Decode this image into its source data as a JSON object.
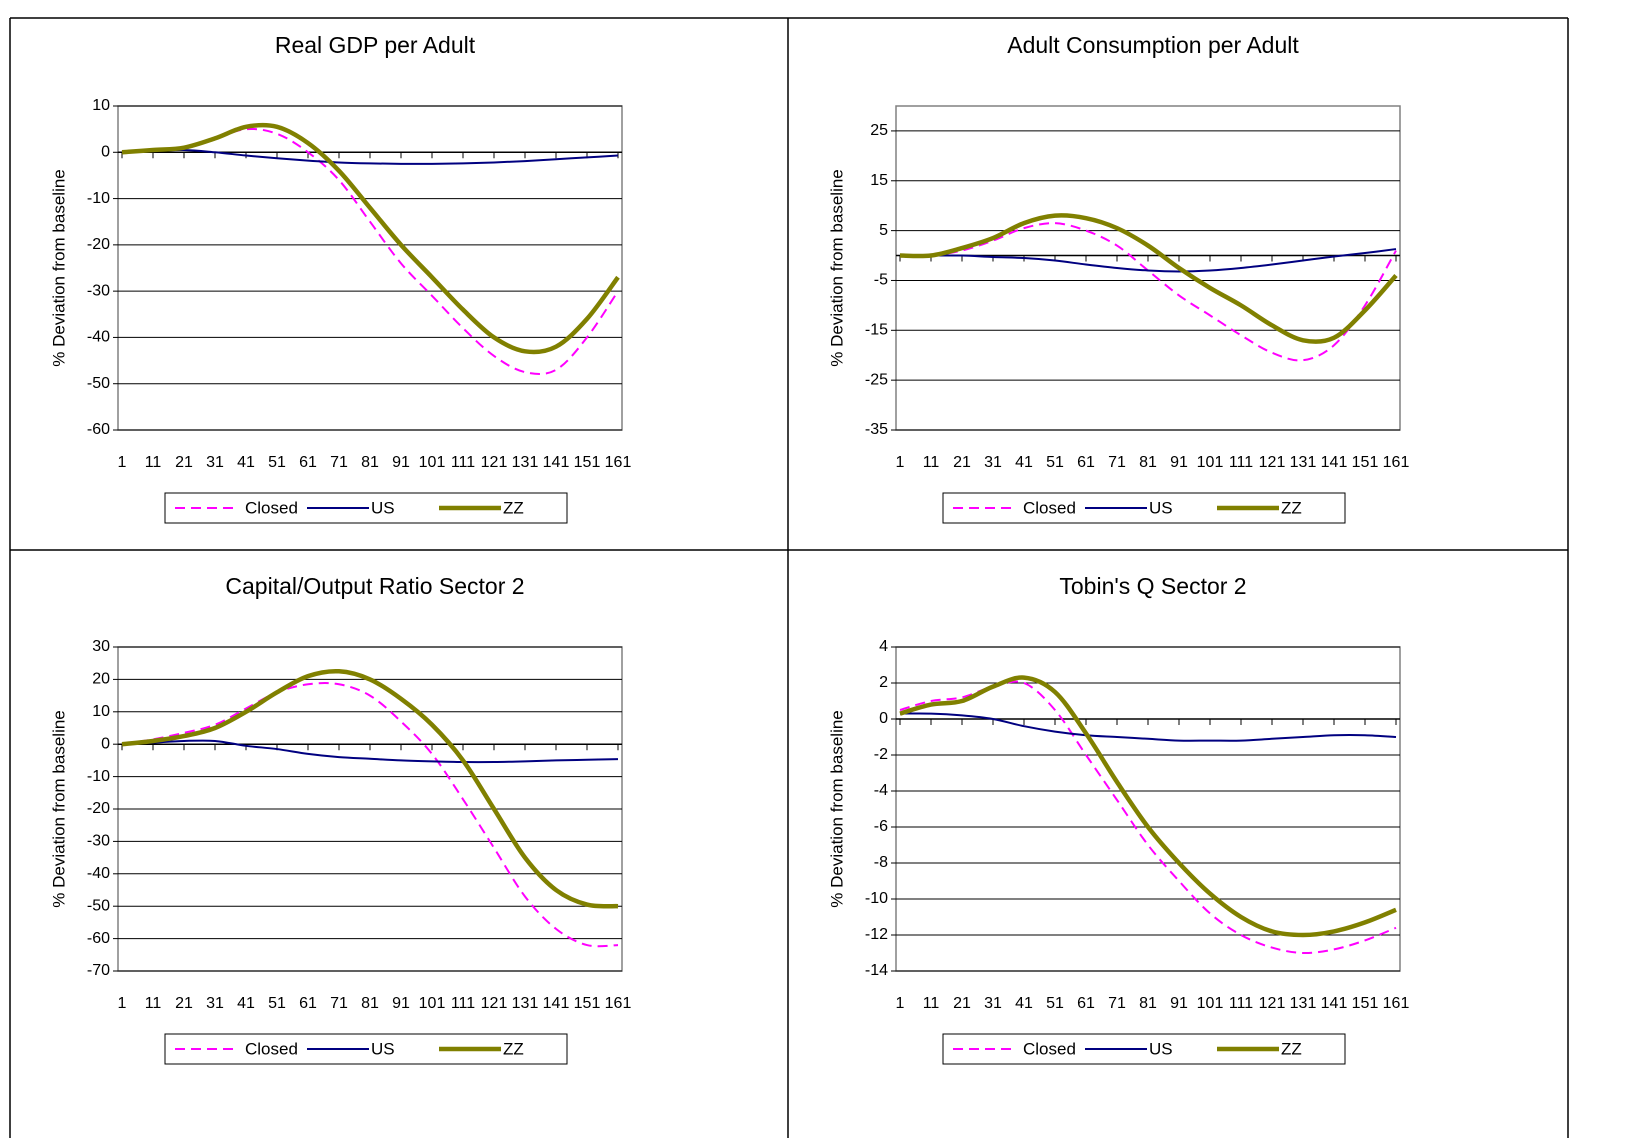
{
  "chart_data": [
    {
      "type": "line",
      "title": "Real GDP per Adult",
      "y_label": "%  Deviation from baseline",
      "x": [
        1,
        11,
        21,
        31,
        41,
        51,
        61,
        71,
        81,
        91,
        101,
        111,
        121,
        131,
        141,
        151,
        161
      ],
      "xlim": [
        1,
        161
      ],
      "xticks": [
        1,
        11,
        21,
        31,
        41,
        51,
        61,
        71,
        81,
        91,
        101,
        111,
        121,
        131,
        141,
        151,
        161
      ],
      "ylim": [
        -60,
        10
      ],
      "yticks": [
        -60,
        -50,
        -40,
        -30,
        -20,
        -10,
        0,
        10
      ],
      "grid": true,
      "legend": "bottom",
      "series": [
        {
          "name": "Closed",
          "color": "#ff00ff",
          "values": [
            0,
            0.5,
            1,
            3,
            5,
            4,
            0,
            -6,
            -15,
            -24,
            -31,
            -38,
            -44,
            -47.5,
            -47,
            -40,
            -30
          ]
        },
        {
          "name": "US",
          "color": "#000080",
          "values": [
            0,
            0.3,
            0.5,
            0,
            -0.7,
            -1.3,
            -1.8,
            -2.2,
            -2.4,
            -2.5,
            -2.5,
            -2.4,
            -2.2,
            -1.9,
            -1.5,
            -1.1,
            -0.7
          ]
        },
        {
          "name": "ZZ",
          "color": "#808000",
          "values": [
            0,
            0.5,
            1,
            3,
            5.5,
            5.5,
            2,
            -4,
            -12,
            -20,
            -27,
            -34,
            -40,
            -43,
            -42,
            -36,
            -27
          ]
        }
      ]
    },
    {
      "type": "line",
      "title": "Adult Consumption per Adult",
      "y_label": "%  Deviation from baseline",
      "x": [
        1,
        11,
        21,
        31,
        41,
        51,
        61,
        71,
        81,
        91,
        101,
        111,
        121,
        131,
        141,
        151,
        161
      ],
      "xlim": [
        1,
        161
      ],
      "xticks": [
        1,
        11,
        21,
        31,
        41,
        51,
        61,
        71,
        81,
        91,
        101,
        111,
        121,
        131,
        141,
        151,
        161
      ],
      "ylim": [
        -35,
        30
      ],
      "yticks": [
        -35,
        -25,
        -15,
        -5,
        5,
        15,
        25
      ],
      "grid": true,
      "legend": "bottom",
      "series": [
        {
          "name": "Closed",
          "color": "#ff00ff",
          "values": [
            0,
            0,
            1,
            3,
            5.5,
            6.5,
            5,
            2,
            -3,
            -8,
            -12,
            -16,
            -19.5,
            -21,
            -18,
            -10,
            1
          ]
        },
        {
          "name": "US",
          "color": "#000080",
          "values": [
            0,
            0,
            0,
            -0.3,
            -0.5,
            -1,
            -1.8,
            -2.5,
            -3,
            -3.2,
            -3,
            -2.5,
            -1.8,
            -1,
            -0.2,
            0.5,
            1.3
          ]
        },
        {
          "name": "ZZ",
          "color": "#808000",
          "values": [
            0,
            0,
            1.5,
            3.5,
            6.5,
            8,
            7.5,
            5.5,
            2,
            -2.5,
            -6.5,
            -10,
            -14,
            -17,
            -16.5,
            -11,
            -4
          ]
        }
      ]
    },
    {
      "type": "line",
      "title": "Capital/Output Ratio Sector 2",
      "y_label": "%  Deviation from baseline",
      "x": [
        1,
        11,
        21,
        31,
        41,
        51,
        61,
        71,
        81,
        91,
        101,
        111,
        121,
        131,
        141,
        151,
        161
      ],
      "xlim": [
        1,
        161
      ],
      "xticks": [
        1,
        11,
        21,
        31,
        41,
        51,
        61,
        71,
        81,
        91,
        101,
        111,
        121,
        131,
        141,
        151,
        161
      ],
      "ylim": [
        -70,
        30
      ],
      "yticks": [
        -70,
        -60,
        -50,
        -40,
        -30,
        -20,
        -10,
        0,
        10,
        20,
        30
      ],
      "grid": true,
      "legend": "bottom",
      "series": [
        {
          "name": "Closed",
          "color": "#ff00ff",
          "values": [
            0,
            1.5,
            3.5,
            6,
            11,
            16,
            18.5,
            18.5,
            15,
            7,
            -3,
            -17,
            -32,
            -47,
            -57,
            -62,
            -62
          ]
        },
        {
          "name": "US",
          "color": "#000080",
          "values": [
            0,
            0.5,
            1,
            1,
            -0.5,
            -1.5,
            -3,
            -4,
            -4.5,
            -5,
            -5.3,
            -5.5,
            -5.5,
            -5.3,
            -5,
            -4.8,
            -4.6
          ]
        },
        {
          "name": "ZZ",
          "color": "#808000",
          "values": [
            0,
            1,
            2.5,
            5,
            10,
            16,
            21,
            22.5,
            20,
            14,
            6,
            -5,
            -20,
            -35,
            -45,
            -49.5,
            -50
          ]
        }
      ]
    },
    {
      "type": "line",
      "title": "Tobin's Q Sector 2",
      "y_label": "%  Deviation from baseline",
      "x": [
        1,
        11,
        21,
        31,
        41,
        51,
        61,
        71,
        81,
        91,
        101,
        111,
        121,
        131,
        141,
        151,
        161
      ],
      "xlim": [
        1,
        161
      ],
      "xticks": [
        1,
        11,
        21,
        31,
        41,
        51,
        61,
        71,
        81,
        91,
        101,
        111,
        121,
        131,
        141,
        151,
        161
      ],
      "ylim": [
        -14,
        4
      ],
      "yticks": [
        -14,
        -12,
        -10,
        -8,
        -6,
        -4,
        -2,
        0,
        2,
        4
      ],
      "grid": true,
      "legend": "bottom",
      "series": [
        {
          "name": "Closed",
          "color": "#ff00ff",
          "values": [
            0.5,
            1,
            1.2,
            1.8,
            2,
            0.5,
            -2,
            -4.5,
            -7,
            -9,
            -10.8,
            -12,
            -12.7,
            -13,
            -12.8,
            -12.3,
            -11.6
          ]
        },
        {
          "name": "US",
          "color": "#000080",
          "values": [
            0.3,
            0.3,
            0.2,
            0,
            -0.4,
            -0.7,
            -0.9,
            -1,
            -1.1,
            -1.2,
            -1.2,
            -1.2,
            -1.1,
            -1,
            -0.9,
            -0.9,
            -1
          ]
        },
        {
          "name": "ZZ",
          "color": "#808000",
          "values": [
            0.3,
            0.8,
            1,
            1.8,
            2.3,
            1.5,
            -0.8,
            -3.5,
            -6,
            -8,
            -9.7,
            -11,
            -11.8,
            -12,
            -11.8,
            -11.3,
            -10.6
          ]
        }
      ]
    }
  ]
}
